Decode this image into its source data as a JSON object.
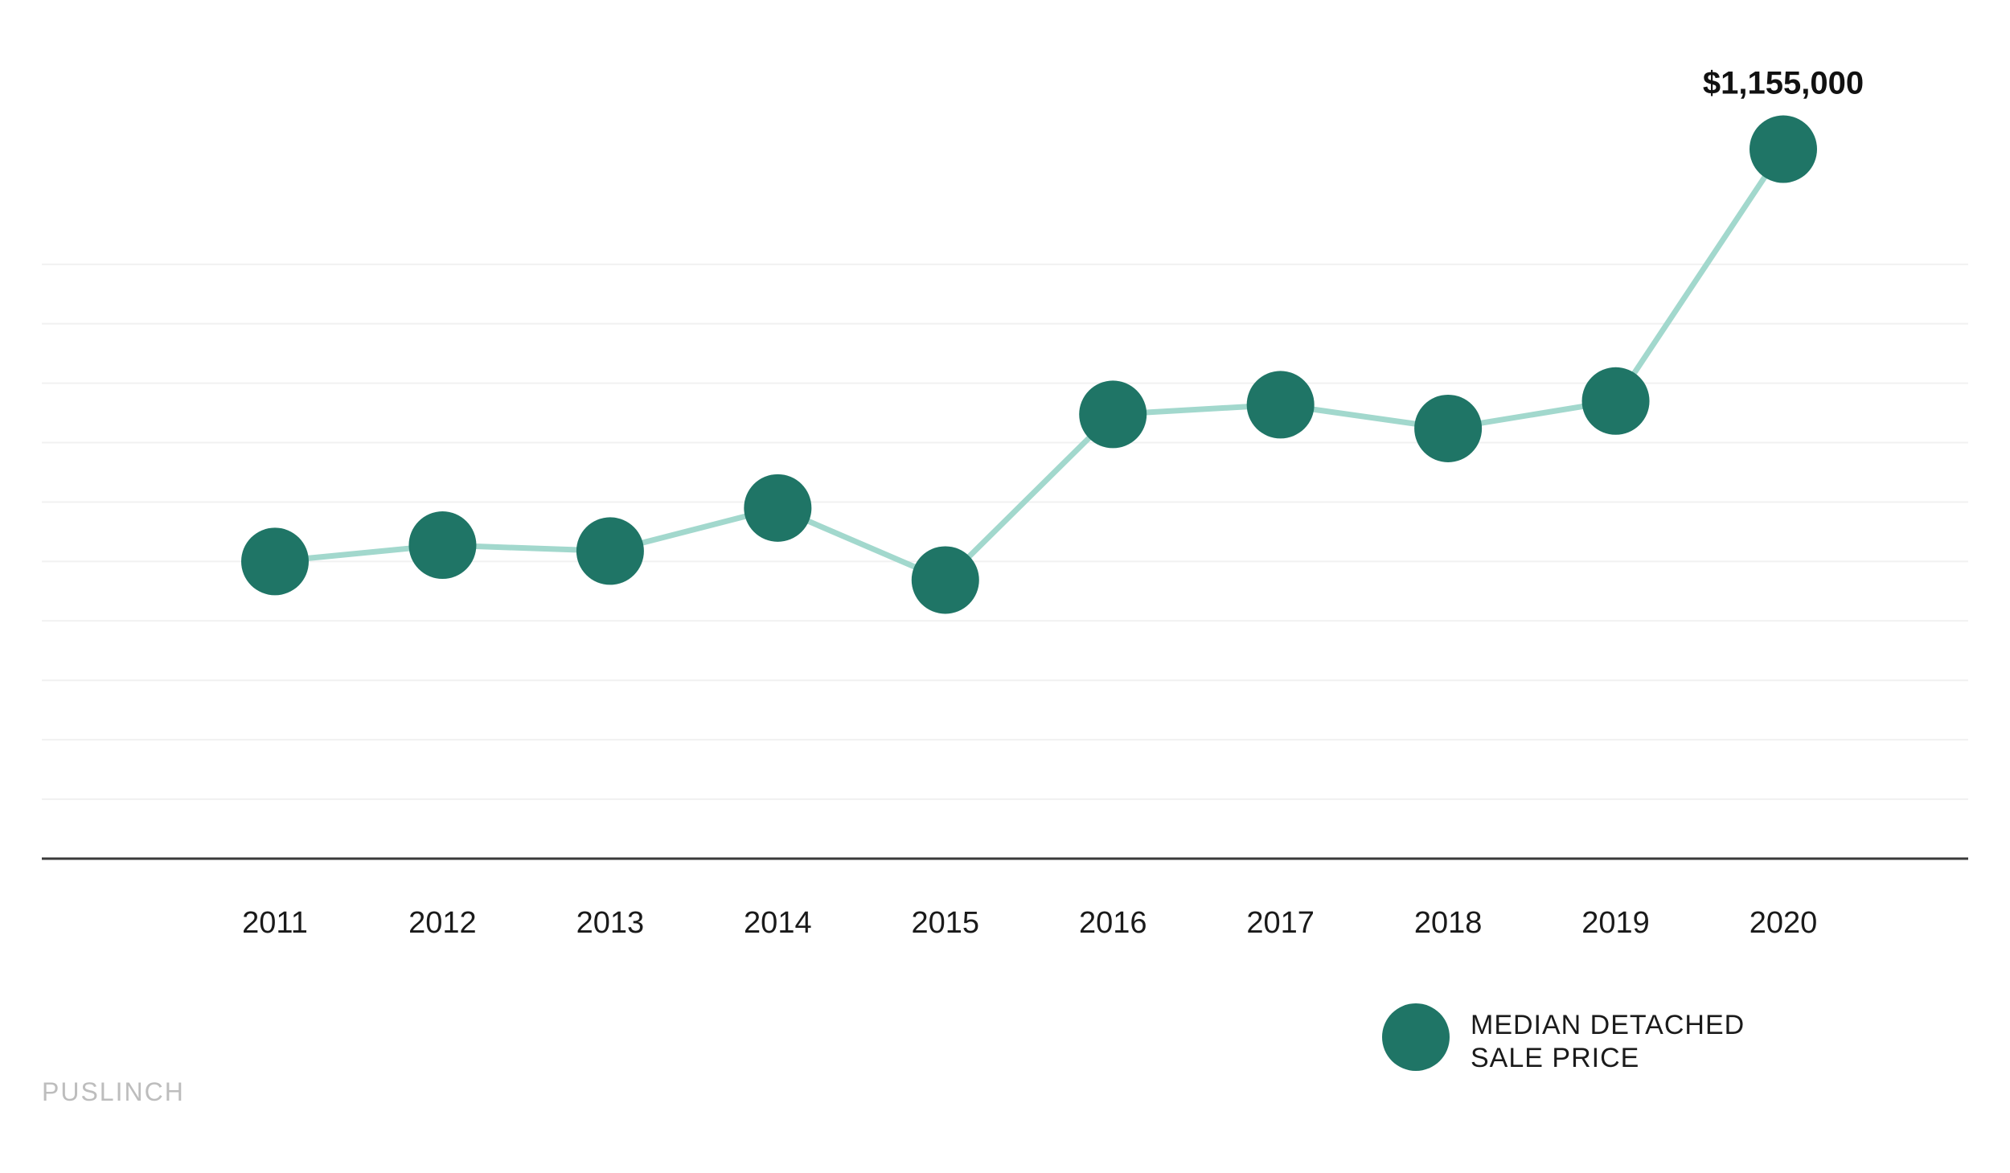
{
  "chart_data": {
    "type": "line",
    "title": "",
    "xlabel": "",
    "ylabel": "",
    "x": [
      "2011",
      "2012",
      "2013",
      "2014",
      "2015",
      "2016",
      "2017",
      "2018",
      "2019",
      "2020"
    ],
    "categories": [
      "2011",
      "2012",
      "2013",
      "2014",
      "2015",
      "2016",
      "2017",
      "2018",
      "2019",
      "2020"
    ],
    "series": [
      {
        "name": "MEDIAN DETACHED SALE PRICE",
        "values": [
          600000,
          622000,
          614000,
          672000,
          575000,
          798000,
          811000,
          779000,
          816000,
          1155000
        ],
        "color": "#1f7566",
        "line_color": "#a2d8cd"
      }
    ],
    "ylim": [
      200000,
      1280000
    ],
    "grid": true,
    "legend": "bottom-right",
    "annotations": [
      {
        "x": "2020",
        "label": "$1,155,000"
      }
    ],
    "legend_lines": [
      "MEDIAN DETACHED",
      "SALE PRICE"
    ],
    "location_label": "PUSLINCH",
    "colors": {
      "marker": "#1f7566",
      "line": "#a2d8cd",
      "grid": "#f1f1f1",
      "axis": "#3a3a3a",
      "location_text": "#bdbdbd"
    }
  }
}
